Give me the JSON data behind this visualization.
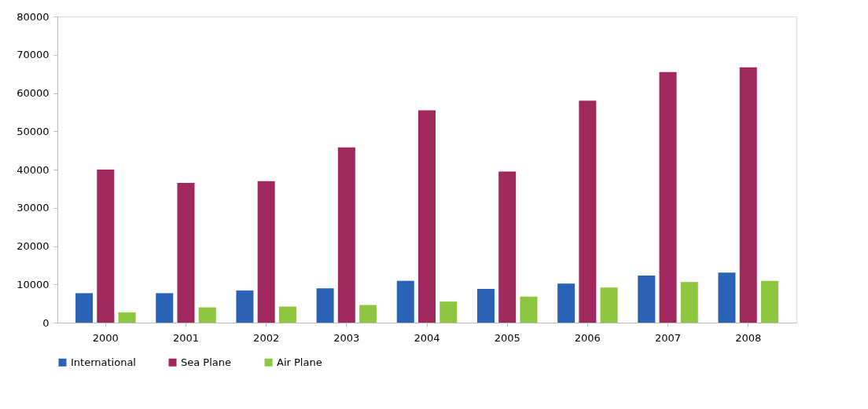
{
  "chart_data": {
    "type": "bar",
    "categories": [
      "2000",
      "2001",
      "2002",
      "2003",
      "2004",
      "2005",
      "2006",
      "2007",
      "2008"
    ],
    "series": [
      {
        "name": "International",
        "color": "#2a62b6",
        "values": [
          7700,
          7700,
          8400,
          9000,
          10900,
          8800,
          10200,
          12300,
          13100
        ]
      },
      {
        "name": "Sea Plane",
        "color": "#a0285f",
        "values": [
          40000,
          36500,
          37000,
          45800,
          55500,
          39500,
          58000,
          65500,
          66700
        ]
      },
      {
        "name": "Air Plane",
        "color": "#8dc63f",
        "values": [
          2700,
          4000,
          4200,
          4600,
          5500,
          6800,
          9200,
          10600,
          10900
        ]
      }
    ],
    "ylim": [
      0,
      80000
    ],
    "yticks": [
      0,
      10000,
      20000,
      30000,
      40000,
      50000,
      60000,
      70000,
      80000
    ],
    "grid": false,
    "legend": "bottom"
  }
}
